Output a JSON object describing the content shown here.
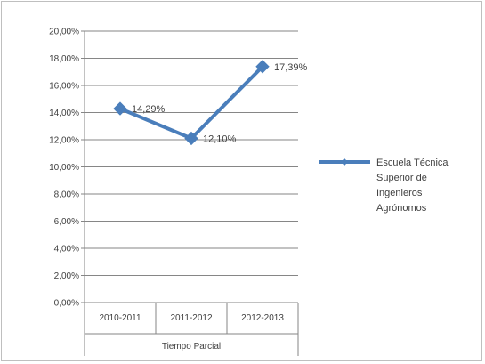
{
  "chart_data": {
    "type": "line",
    "categories": [
      "2010-2011",
      "2011-2012",
      "2012-2013"
    ],
    "group_label": "Tiempo Parcial",
    "series": [
      {
        "name": "Escuela Técnica Superior de Ingenieros Agrónomos",
        "legend_lines": [
          "Escuela Técnica",
          "Superior de",
          "Ingenieros",
          "Agrónomos"
        ],
        "values": [
          14.29,
          12.1,
          17.39
        ],
        "labels": [
          "14,29%",
          "12,10%",
          "17,39%"
        ],
        "color": "#4a7ebb"
      }
    ],
    "ylim": [
      0,
      20
    ],
    "yticks": [
      "0,00%",
      "2,00%",
      "4,00%",
      "6,00%",
      "8,00%",
      "10,00%",
      "12,00%",
      "14,00%",
      "16,00%",
      "18,00%",
      "20,00%"
    ],
    "grid": true,
    "legend_position": "right",
    "title": "",
    "xlabel": "",
    "ylabel": ""
  }
}
